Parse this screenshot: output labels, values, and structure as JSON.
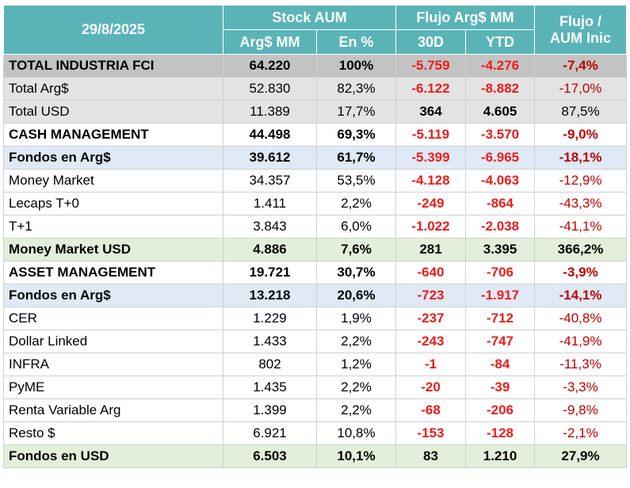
{
  "header": {
    "date": "29/8/2025",
    "stock_group": "Stock AUM",
    "flujo_group": "Flujo Arg$ MM",
    "ratio_line1": "Flujo /",
    "ratio_line2": "AUM Inic",
    "col_arg_mm": "Arg$ MM",
    "col_pct": "En %",
    "col_30d": "30D",
    "col_ytd": "YTD"
  },
  "colors": {
    "header_bg": "#5ab4b7",
    "total_bg": "#c3c3c3",
    "blue_group_bg": "#dfeaf6",
    "green_group_bg": "#e3efda",
    "negative_flow": "#ee1c1c",
    "negative_ratio": "#c00000"
  },
  "rows": [
    {
      "label": "TOTAL INDUSTRIA FCI",
      "aum": "64.220",
      "pct": "100%",
      "d30": "-5.759",
      "ytd": "-4.276",
      "ratio": "-7,4%"
    },
    {
      "label": "Total Arg$",
      "aum": "52.830",
      "pct": "82,3%",
      "d30": "-6.122",
      "ytd": "-8.882",
      "ratio": "-17,0%"
    },
    {
      "label": "Total USD",
      "aum": "11.389",
      "pct": "17,7%",
      "d30": "364",
      "ytd": "4.605",
      "ratio": "87,5%"
    },
    {
      "label": "CASH MANAGEMENT",
      "aum": "44.498",
      "pct": "69,3%",
      "d30": "-5.119",
      "ytd": "-3.570",
      "ratio": "-9,0%"
    },
    {
      "label": "Fondos en Arg$",
      "aum": "39.612",
      "pct": "61,7%",
      "d30": "-5.399",
      "ytd": "-6.965",
      "ratio": "-18,1%"
    },
    {
      "label": "Money Market",
      "aum": "34.357",
      "pct": "53,5%",
      "d30": "-4.128",
      "ytd": "-4.063",
      "ratio": "-12,9%"
    },
    {
      "label": "Lecaps T+0",
      "aum": "1.411",
      "pct": "2,2%",
      "d30": "-249",
      "ytd": "-864",
      "ratio": "-43,3%"
    },
    {
      "label": "T+1",
      "aum": "3.843",
      "pct": "6,0%",
      "d30": "-1.022",
      "ytd": "-2.038",
      "ratio": "-41,1%"
    },
    {
      "label": "Money Market USD",
      "aum": "4.886",
      "pct": "7,6%",
      "d30": "281",
      "ytd": "3.395",
      "ratio": "366,2%"
    },
    {
      "label": "ASSET MANAGEMENT",
      "aum": "19.721",
      "pct": "30,7%",
      "d30": "-640",
      "ytd": "-706",
      "ratio": "-3,9%"
    },
    {
      "label": "Fondos en Arg$",
      "aum": "13.218",
      "pct": "20,6%",
      "d30": "-723",
      "ytd": "-1.917",
      "ratio": "-14,1%"
    },
    {
      "label": "CER",
      "aum": "1.229",
      "pct": "1,9%",
      "d30": "-237",
      "ytd": "-712",
      "ratio": "-40,8%"
    },
    {
      "label": "Dollar Linked",
      "aum": "1.433",
      "pct": "2,2%",
      "d30": "-243",
      "ytd": "-747",
      "ratio": "-41,9%"
    },
    {
      "label": "INFRA",
      "aum": "802",
      "pct": "1,2%",
      "d30": "-1",
      "ytd": "-84",
      "ratio": "-11,3%"
    },
    {
      "label": "PyME",
      "aum": "1.435",
      "pct": "2,2%",
      "d30": "-20",
      "ytd": "-39",
      "ratio": "-3,3%"
    },
    {
      "label": "Renta Variable Arg",
      "aum": "1.399",
      "pct": "2,2%",
      "d30": "-68",
      "ytd": "-206",
      "ratio": "-9,8%"
    },
    {
      "label": "Resto $",
      "aum": "6.921",
      "pct": "10,8%",
      "d30": "-153",
      "ytd": "-128",
      "ratio": "-2,1%"
    },
    {
      "label": "Fondos en USD",
      "aum": "6.503",
      "pct": "10,1%",
      "d30": "83",
      "ytd": "1.210",
      "ratio": "27,9%"
    }
  ]
}
